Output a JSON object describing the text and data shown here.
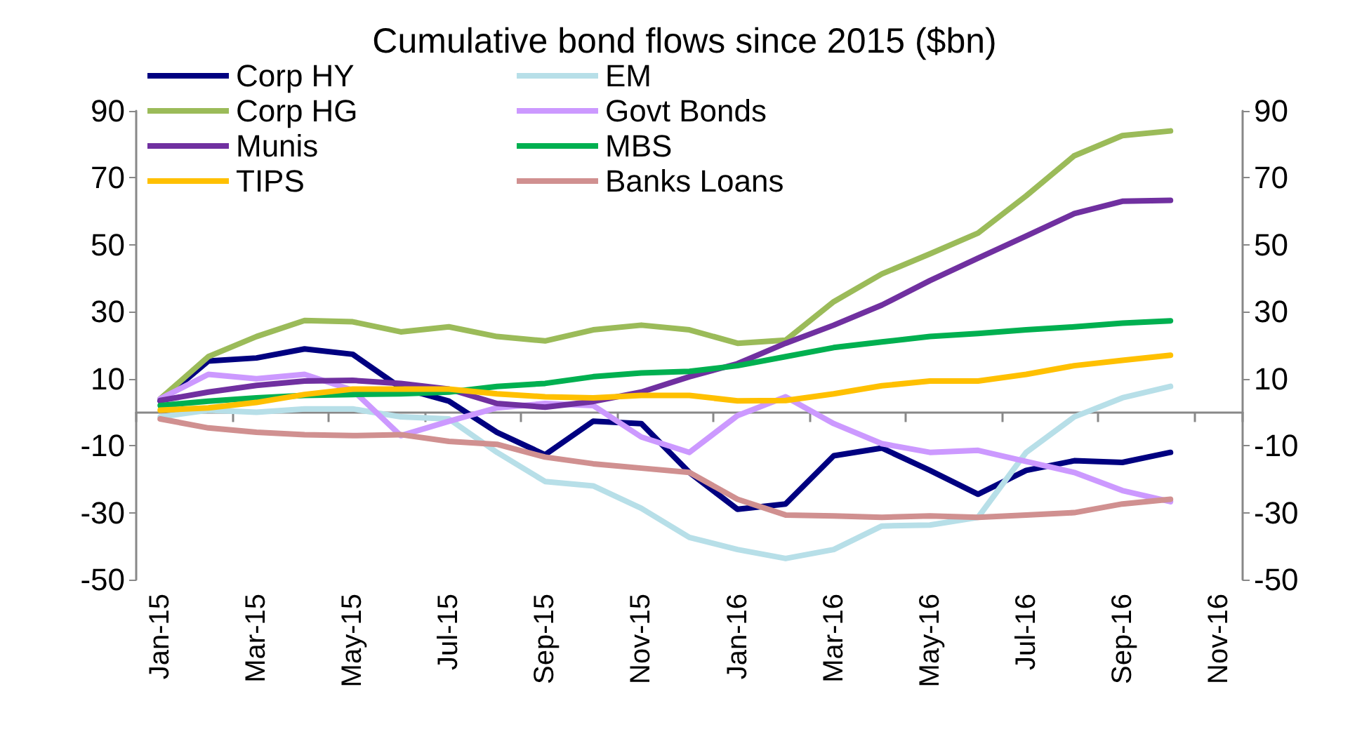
{
  "chart_data": {
    "type": "line",
    "title": "Cumulative bond flows since 2015 ($bn)",
    "categories": [
      "Jan-15",
      null,
      "Mar-15",
      null,
      "May-15",
      null,
      "Jul-15",
      null,
      "Sep-15",
      null,
      "Nov-15",
      null,
      "Jan-16",
      null,
      "Mar-16",
      null,
      "May-16",
      null,
      "Jul-16",
      null,
      "Sep-16",
      null,
      "Nov-16"
    ],
    "series": [
      {
        "name": "Corp HY",
        "color": "#000080",
        "values": [
          3.3,
          15.3,
          16.2,
          18.9,
          17.3,
          7.3,
          3.3,
          -6,
          -12.7,
          -2.7,
          -3.4,
          -18,
          -29,
          -27.4,
          -13,
          -10.7,
          -17.4,
          -24.5,
          -17.4,
          -14.5,
          -15,
          -12,
          null
        ]
      },
      {
        "name": "EM",
        "color": "#b7dfe8",
        "values": [
          -1.4,
          0.6,
          0,
          1,
          1,
          -1.4,
          -2,
          -12,
          -20.7,
          -22,
          -28.7,
          -37.4,
          -41,
          -43.7,
          -41,
          -34,
          -33.7,
          -31.4,
          -12,
          -1.4,
          4.3,
          7.7,
          null
        ]
      },
      {
        "name": "Corp HG",
        "color": "#9bbb59",
        "values": [
          4,
          16.6,
          22.6,
          27.4,
          27,
          24,
          25.5,
          22.6,
          21.3,
          24.6,
          26,
          24.6,
          20.6,
          21.5,
          33,
          41.3,
          47.3,
          53.5,
          64.6,
          76.6,
          82.6,
          84,
          null
        ]
      },
      {
        "name": "Govt Bonds",
        "color": "#cc99ff",
        "values": [
          4,
          11.3,
          10,
          11.3,
          6.6,
          -7,
          -2.7,
          1.3,
          2.6,
          2,
          -7.4,
          -12,
          -1,
          4.6,
          -3.4,
          -9.4,
          -12,
          -11.4,
          -14.7,
          -18,
          -23.4,
          -26.7,
          null
        ]
      },
      {
        "name": "Munis",
        "color": "#7030a0",
        "values": [
          3.5,
          6,
          8,
          9.3,
          9.5,
          8.6,
          6.9,
          2.6,
          1.5,
          3.2,
          6,
          10.6,
          14.5,
          20.6,
          26,
          32,
          39.3,
          46,
          52.6,
          59.3,
          63,
          63.3,
          null
        ]
      },
      {
        "name": "MBS",
        "color": "#00b050",
        "values": [
          2,
          3.3,
          4.3,
          5,
          5.3,
          5.5,
          6,
          7.7,
          8.6,
          10.6,
          11.7,
          12.2,
          13.9,
          16.6,
          19.3,
          21,
          22.6,
          23.5,
          24.6,
          25.5,
          26.6,
          27.3,
          null
        ]
      },
      {
        "name": "TIPS",
        "color": "#ffc000",
        "values": [
          0.6,
          1.3,
          2.9,
          5.3,
          6.9,
          6.9,
          6.9,
          5.5,
          4.6,
          4.3,
          5,
          5,
          3.4,
          3.5,
          5.5,
          7.9,
          9.3,
          9.3,
          11.3,
          13.9,
          15.5,
          17,
          null
        ]
      },
      {
        "name": "Banks Loans",
        "color": "#d09090",
        "values": [
          -2,
          -4.7,
          -6,
          -6.7,
          -7,
          -6.7,
          -8.7,
          -9.6,
          -13.4,
          -15.4,
          -16.7,
          -18,
          -26,
          -30.7,
          -31,
          -31.4,
          -31,
          -31.4,
          -30.7,
          -30,
          -27.4,
          -26,
          null
        ]
      }
    ],
    "ylim": [
      -50,
      90
    ],
    "yticks": [
      -50,
      -30,
      -10,
      10,
      30,
      50,
      70,
      90
    ],
    "y2lim": [
      -50,
      90
    ],
    "y2ticks": [
      -50,
      -30,
      -10,
      10,
      30,
      50,
      70,
      90
    ],
    "legend": "top left",
    "grid": false,
    "marker": "none",
    "line_style": "solid"
  }
}
